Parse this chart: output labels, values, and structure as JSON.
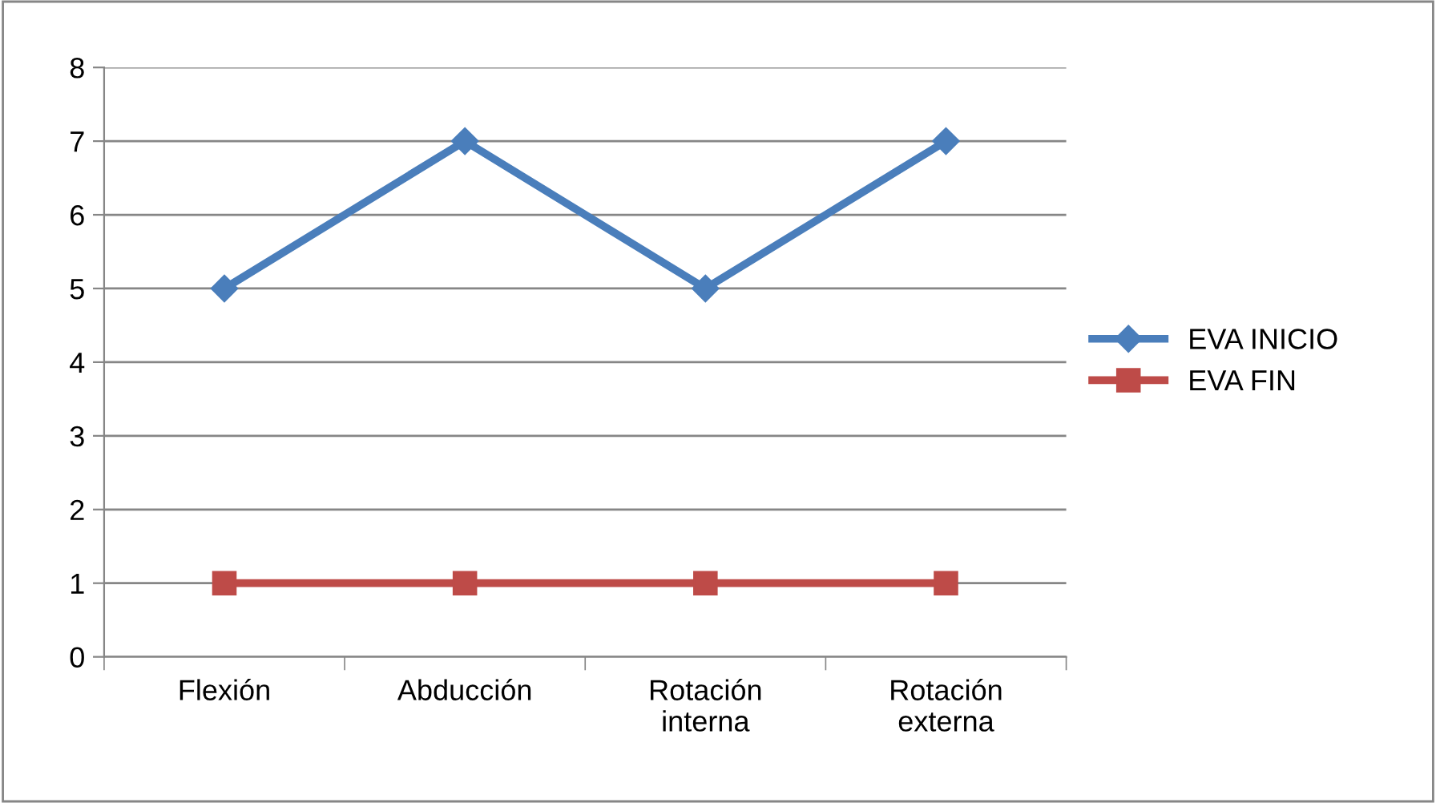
{
  "chart_data": {
    "type": "line",
    "categories": [
      "Flexión",
      "Abducción",
      "Rotación interna",
      "Rotación externa"
    ],
    "series": [
      {
        "name": "EVA INICIO",
        "color": "#4a7ebb",
        "marker": "diamond",
        "values": [
          5,
          7,
          5,
          7
        ]
      },
      {
        "name": "EVA FIN",
        "color": "#be4b48",
        "marker": "square",
        "values": [
          1,
          1,
          1,
          1
        ]
      }
    ],
    "ylim": [
      0,
      8
    ],
    "yticks": [
      0,
      1,
      2,
      3,
      4,
      5,
      6,
      7,
      8
    ],
    "grid": "y",
    "legend": "right",
    "line_style": "solid"
  }
}
